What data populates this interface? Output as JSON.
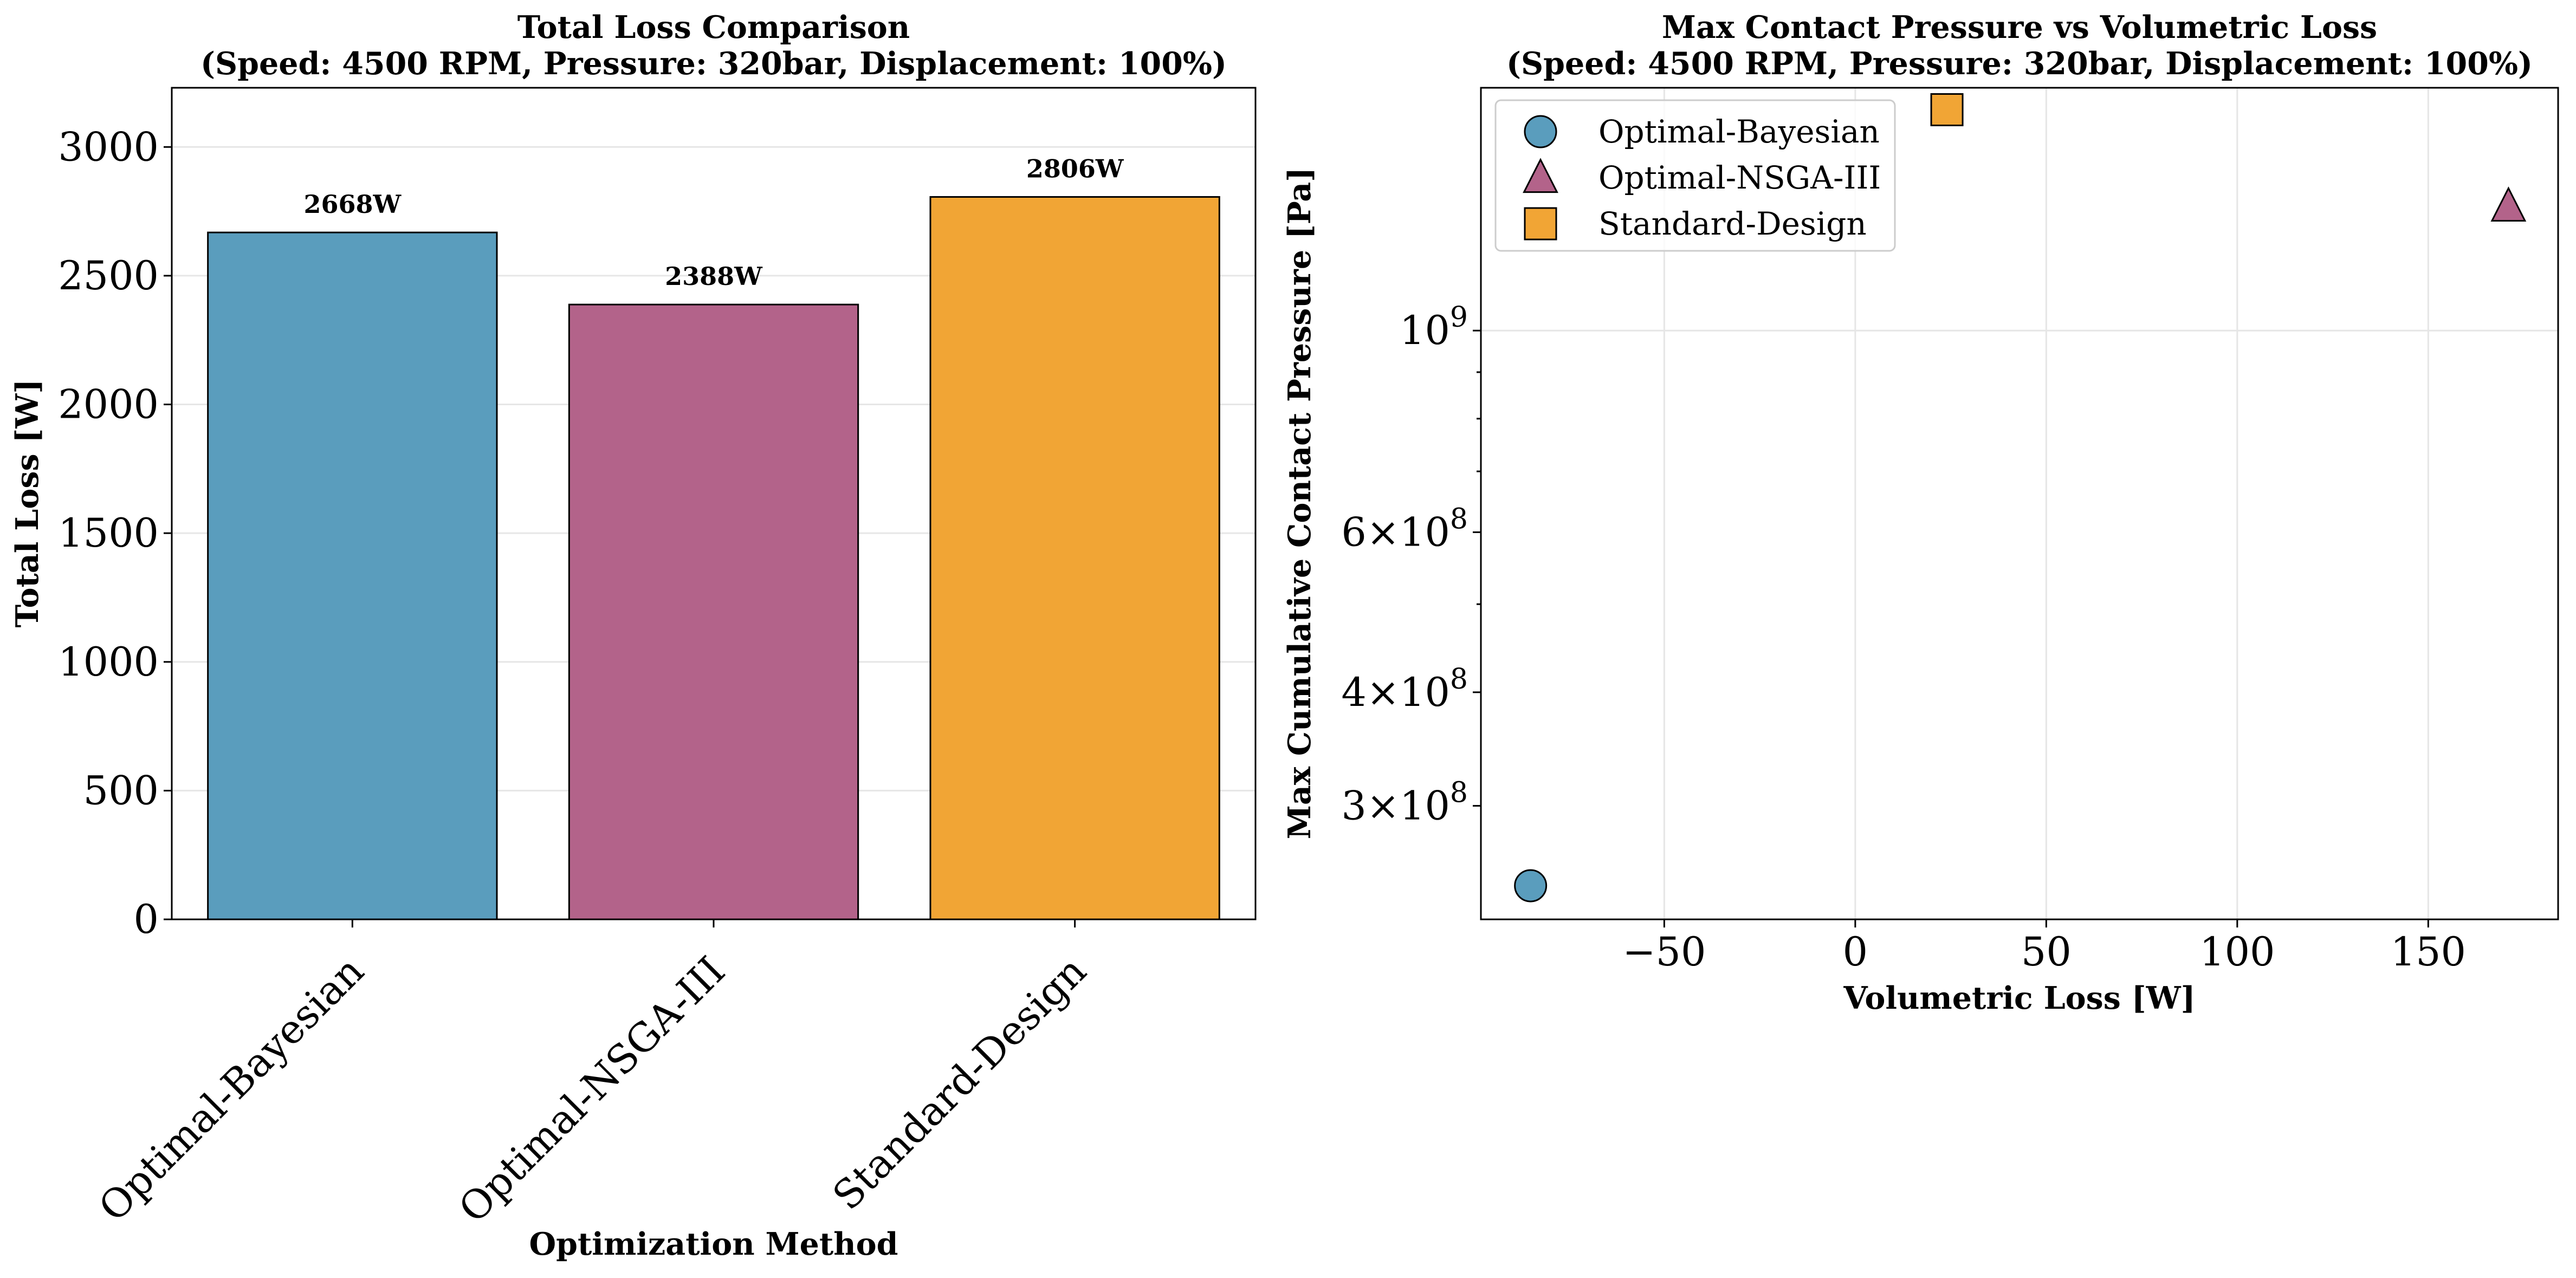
{
  "chart_data": [
    {
      "type": "bar",
      "title": "Total Loss Comparison",
      "subtitle": "(Speed: 4500 RPM, Pressure: 320bar, Displacement: 100%)",
      "xlabel": "Optimization Method",
      "ylabel": "Total Loss [W]",
      "categories": [
        "Optimal-Bayesian",
        "Optimal-NSGA-III",
        "Standard-Design"
      ],
      "values": [
        2668,
        2388,
        2806
      ],
      "data_labels": [
        "2668W",
        "2388W",
        "2806W"
      ],
      "colors": [
        "#5a9dbd",
        "#b3638a",
        "#f1a535"
      ],
      "ylim": [
        0,
        3230
      ],
      "yticks": [
        0,
        500,
        1000,
        1500,
        2000,
        2500,
        3000
      ],
      "grid": true
    },
    {
      "type": "scatter",
      "title": "Max Contact Pressure vs Volumetric Loss",
      "subtitle": "(Speed: 4500 RPM, Pressure: 320bar, Displacement: 100%)",
      "xlabel": "Volumetric Loss [W]",
      "ylabel": "Max Cumulative Contact Pressure [Pa]",
      "yscale": "log",
      "xlim": [
        -98,
        184
      ],
      "ylim": [
        225000000,
        1850000000
      ],
      "xticks": [
        -50,
        0,
        50,
        100,
        150
      ],
      "ytick_labels": [
        {
          "value": 1000000000,
          "mant": "",
          "base": "10",
          "exp": "9"
        },
        {
          "value": 600000000,
          "mant": "6",
          "base": "10",
          "exp": "8"
        },
        {
          "value": 400000000,
          "mant": "4",
          "base": "10",
          "exp": "8"
        },
        {
          "value": 300000000,
          "mant": "3",
          "base": "10",
          "exp": "8"
        }
      ],
      "minor_yticks": [
        900000000,
        800000000,
        700000000,
        500000000
      ],
      "series": [
        {
          "name": "Optimal-Bayesian",
          "marker": "circle",
          "color": "#5a9dbd",
          "x": -85,
          "y": 245000000
        },
        {
          "name": "Optimal-NSGA-III",
          "marker": "triangle",
          "color": "#b3638a",
          "x": 171,
          "y": 1370000000
        },
        {
          "name": "Standard-Design",
          "marker": "square",
          "color": "#f1a535",
          "x": 24,
          "y": 1750000000
        }
      ],
      "legend": "upper-left",
      "grid": true
    }
  ]
}
